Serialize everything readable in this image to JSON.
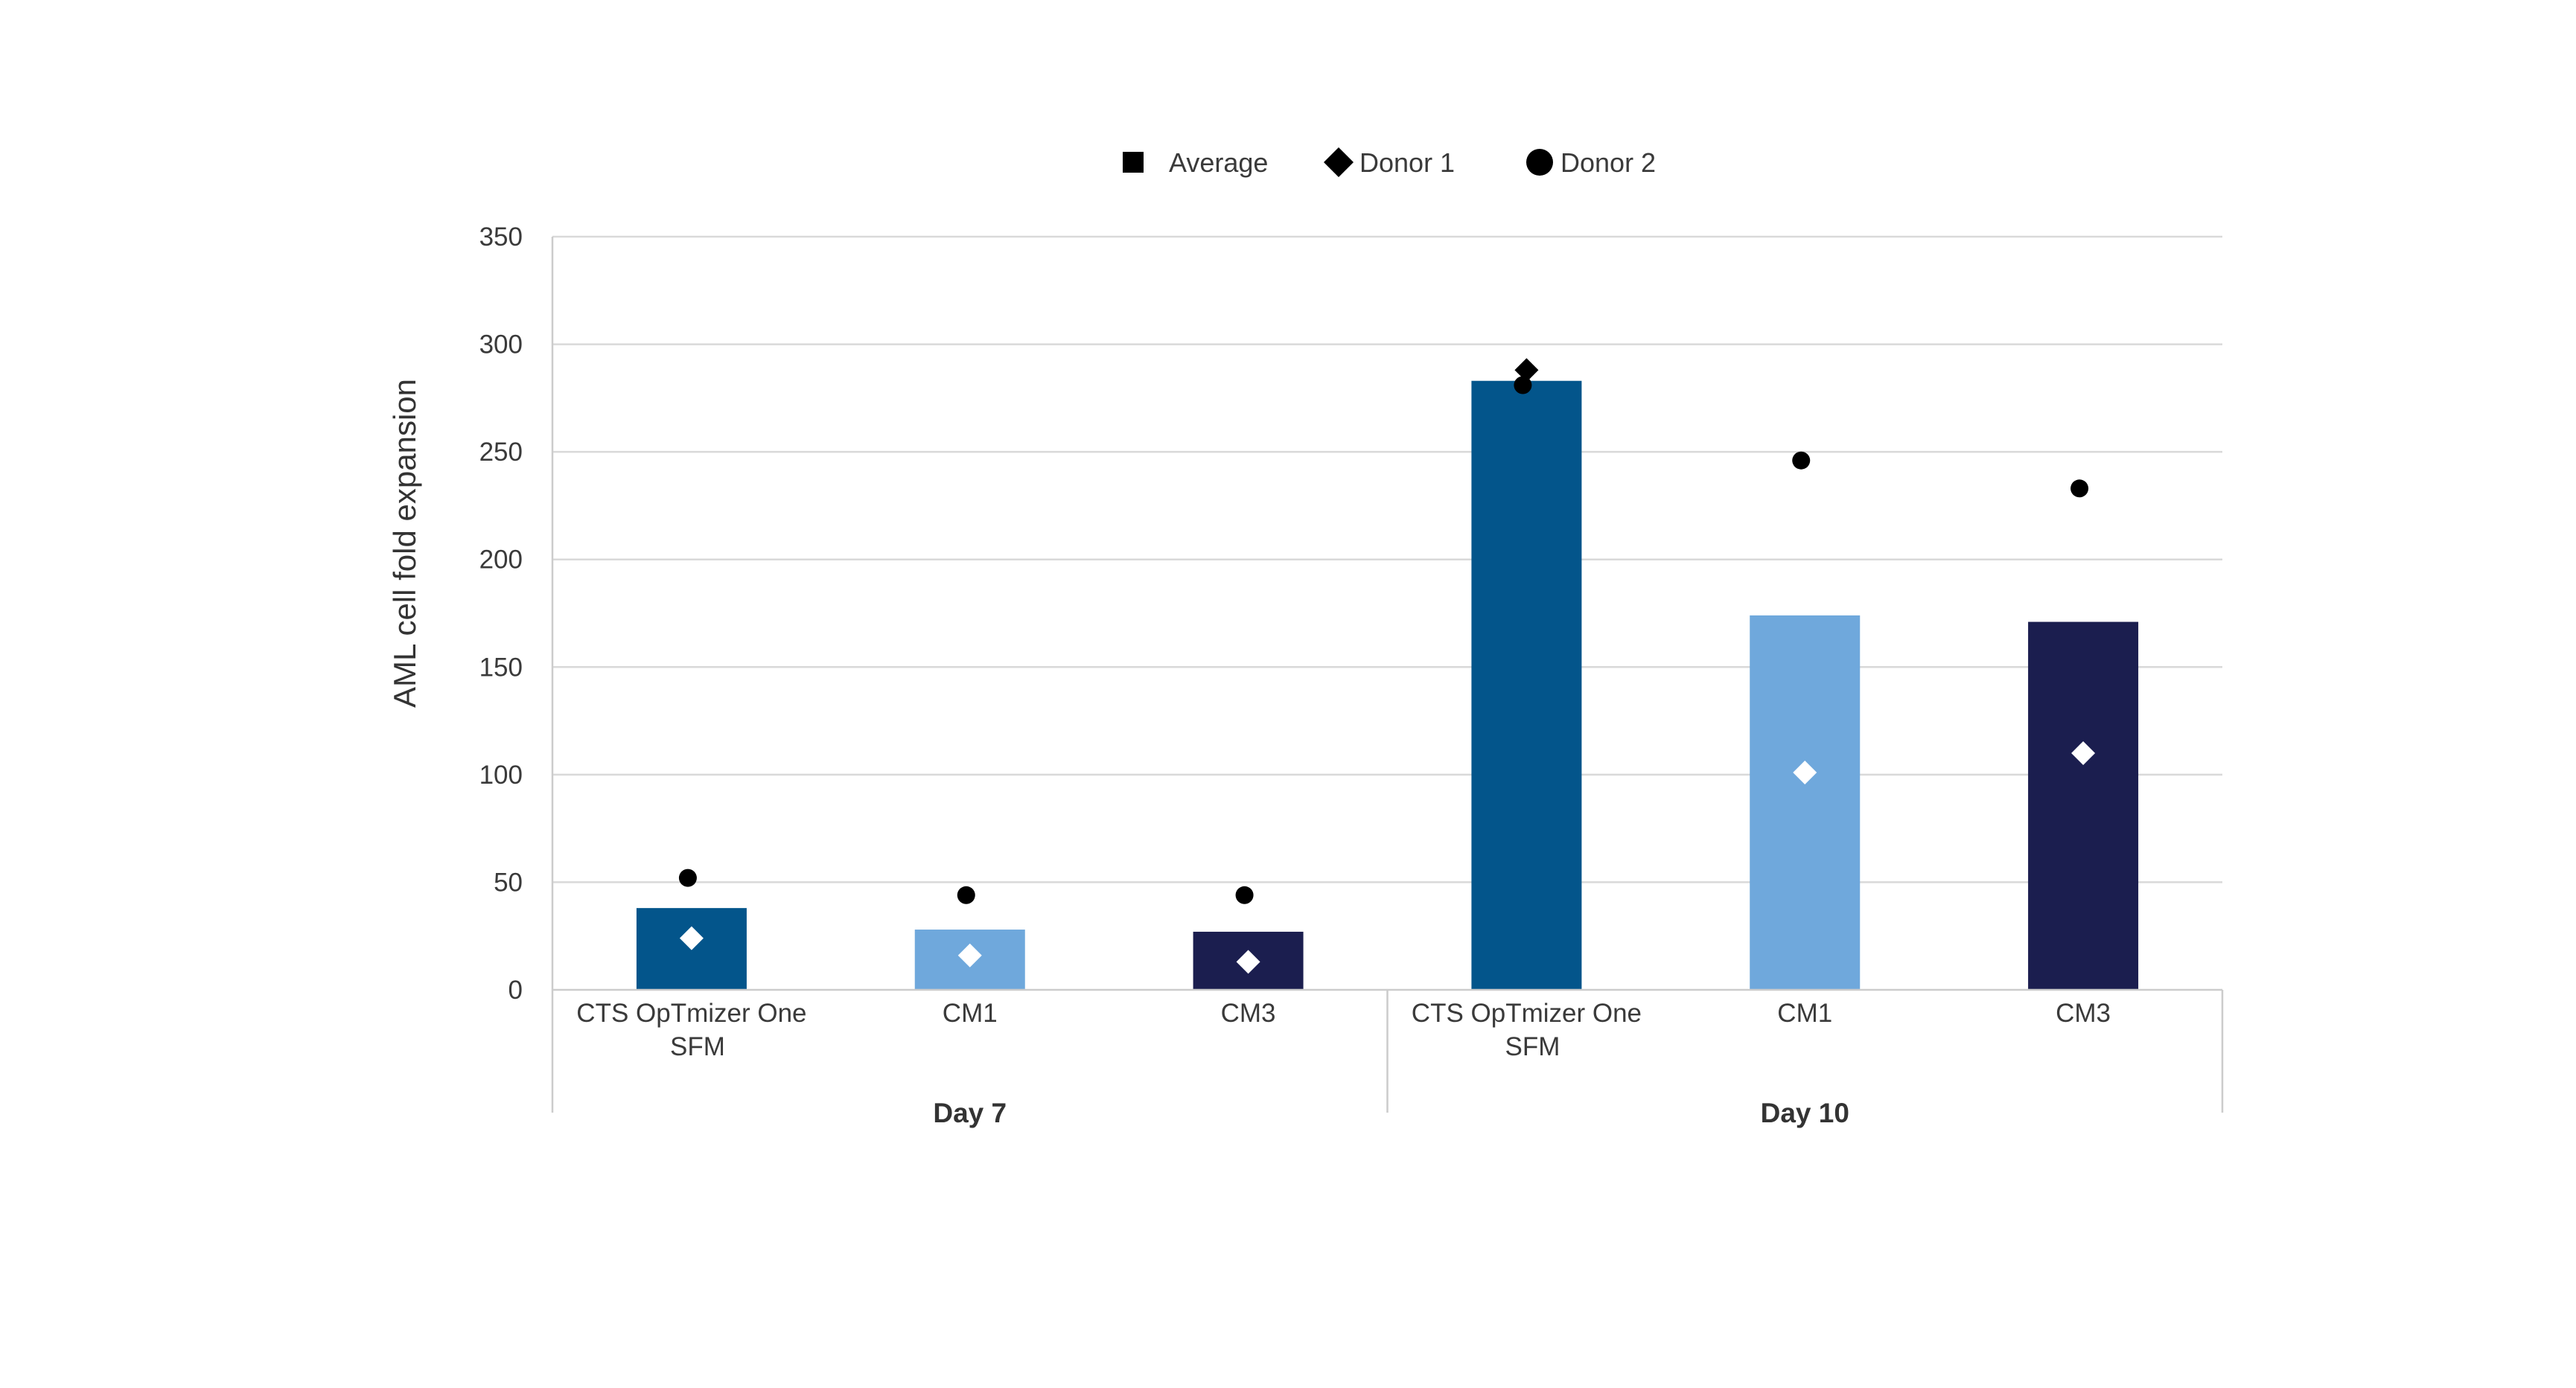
{
  "chart_data": {
    "type": "bar",
    "title": "",
    "ylabel": "AML cell fold expansion",
    "xlabel": "",
    "ylim": [
      0,
      350
    ],
    "yticks": [
      0,
      50,
      100,
      150,
      200,
      250,
      300,
      350
    ],
    "grid": true,
    "legend_position": "top-center",
    "legend": [
      {
        "label": "Average",
        "marker": "square"
      },
      {
        "label": "Donor 1",
        "marker": "diamond"
      },
      {
        "label": "Donor 2",
        "marker": "circle"
      }
    ],
    "groups": [
      {
        "label": "Day 7",
        "categories": [
          {
            "label": [
              "CTS OpTmizer One",
              "SFM"
            ],
            "average": 38,
            "donor1": 24,
            "donor2": 52,
            "color": "#03558b"
          },
          {
            "label": [
              "CM1"
            ],
            "average": 28,
            "donor1": 16,
            "donor2": 44,
            "color": "#6fa8dc"
          },
          {
            "label": [
              "CM3"
            ],
            "average": 27,
            "donor1": 13,
            "donor2": 44,
            "color": "#1b1e4f"
          }
        ]
      },
      {
        "label": "Day 10",
        "categories": [
          {
            "label": [
              "CTS OpTmizer One",
              "SFM"
            ],
            "average": 283,
            "donor1": 288,
            "donor2": 281,
            "color": "#03558b"
          },
          {
            "label": [
              "CM1"
            ],
            "average": 174,
            "donor1": 101,
            "donor2": 246,
            "color": "#6fa8dc"
          },
          {
            "label": [
              "CM3"
            ],
            "average": 171,
            "donor1": 110,
            "donor2": 233,
            "color": "#1b1e4f"
          }
        ]
      }
    ]
  }
}
